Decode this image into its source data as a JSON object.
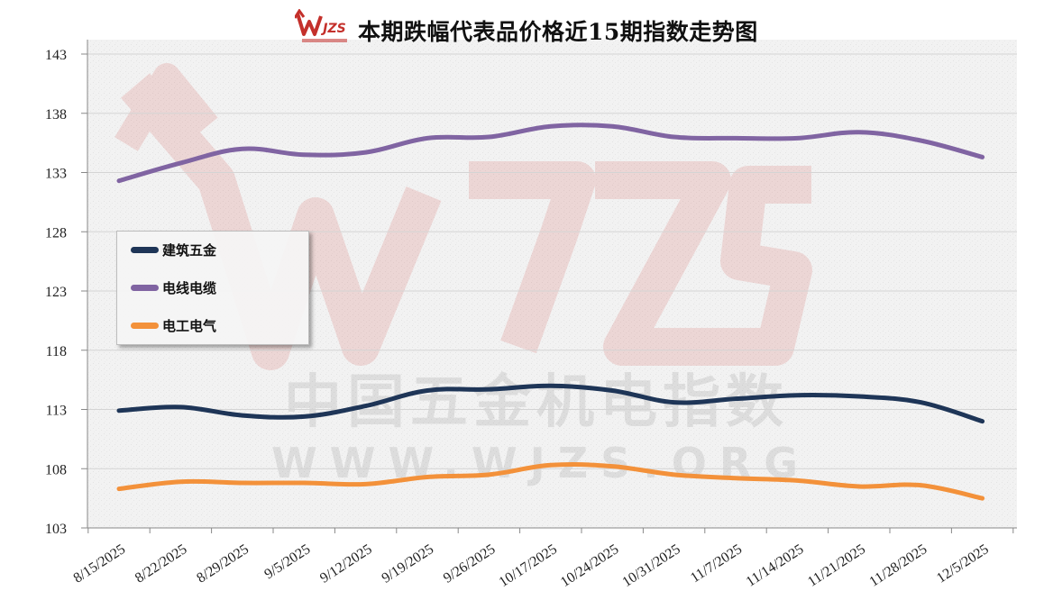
{
  "title": "本期跌幅代表品价格近15期指数走势图",
  "logo": {
    "name": "wjzs-logo",
    "text": "WJZS",
    "subtext": "中国五金机电指数"
  },
  "watermark": {
    "brand": "WJZS",
    "cn": "中国五金机电指数",
    "url": "WWW.WJZS.ORG"
  },
  "chart_data": {
    "type": "line",
    "title": "本期跌幅代表品价格近15期指数走势图",
    "xlabel": "",
    "ylabel": "",
    "ylim": [
      103,
      143
    ],
    "yticks": [
      103,
      108,
      113,
      118,
      123,
      128,
      133,
      138,
      143
    ],
    "grid": true,
    "legend_position": "left-middle",
    "categories": [
      "8/15/2025",
      "8/22/2025",
      "8/29/2025",
      "9/5/2025",
      "9/12/2025",
      "9/19/2025",
      "9/26/2025",
      "10/17/2025",
      "10/24/2025",
      "10/31/2025",
      "11/7/2025",
      "11/14/2025",
      "11/21/2025",
      "11/28/2025",
      "12/5/2025"
    ],
    "series": [
      {
        "name": "建筑五金",
        "color": "#1e3557",
        "values": [
          112.9,
          113.2,
          112.5,
          112.4,
          113.3,
          114.6,
          114.7,
          115.0,
          114.6,
          113.6,
          113.9,
          114.2,
          114.1,
          113.6,
          112.0
        ]
      },
      {
        "name": "电线电缆",
        "color": "#8064a2",
        "values": [
          132.3,
          133.8,
          135.0,
          134.5,
          134.7,
          135.9,
          136.0,
          136.9,
          136.9,
          136.0,
          135.9,
          135.9,
          136.4,
          135.7,
          134.3
        ]
      },
      {
        "name": "电工电气",
        "color": "#f3913a",
        "values": [
          106.3,
          106.9,
          106.8,
          106.8,
          106.7,
          107.3,
          107.5,
          108.3,
          108.2,
          107.5,
          107.2,
          107.0,
          106.5,
          106.6,
          105.5
        ]
      }
    ]
  }
}
